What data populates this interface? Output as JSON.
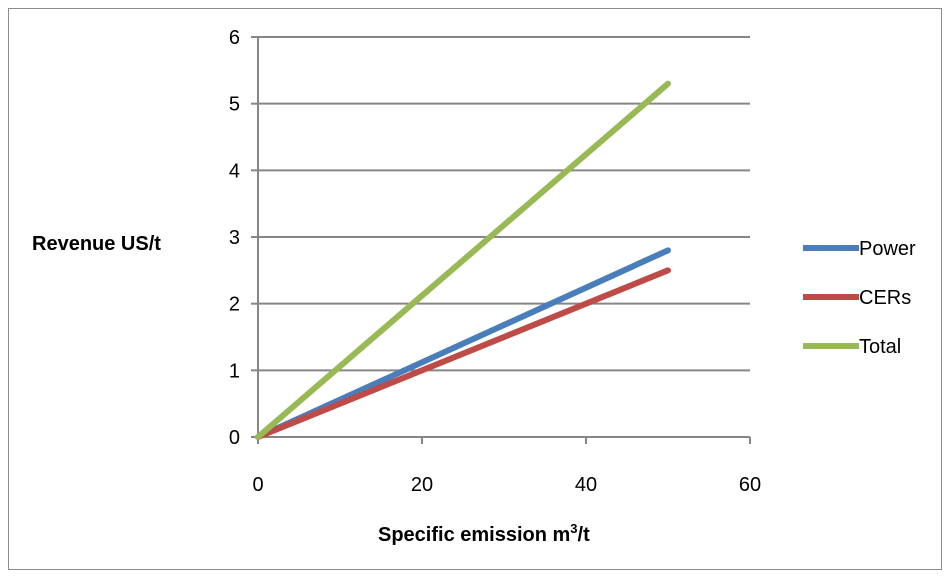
{
  "chart_data": {
    "type": "line",
    "title": "",
    "xlabel": "Specific emission m",
    "xlabel_superscript": "3",
    "xlabel_suffix": "/t",
    "ylabel": "Revenue US/t",
    "xlim": [
      0,
      60
    ],
    "ylim": [
      0,
      6
    ],
    "x_ticks": [
      "0",
      "20",
      "40",
      "60"
    ],
    "y_ticks": [
      "0",
      "1",
      "2",
      "3",
      "4",
      "5",
      "6"
    ],
    "grid": "horizontal",
    "legend_position": "right",
    "series": [
      {
        "name": "Power",
        "color": "#4a7ebb",
        "x": [
          0,
          50
        ],
        "y": [
          0,
          2.8
        ]
      },
      {
        "name": "CERs",
        "color": "#be4b48",
        "x": [
          0,
          50
        ],
        "y": [
          0,
          2.5
        ]
      },
      {
        "name": "Total",
        "color": "#98b954",
        "x": [
          0,
          50
        ],
        "y": [
          0,
          5.3
        ]
      }
    ]
  }
}
